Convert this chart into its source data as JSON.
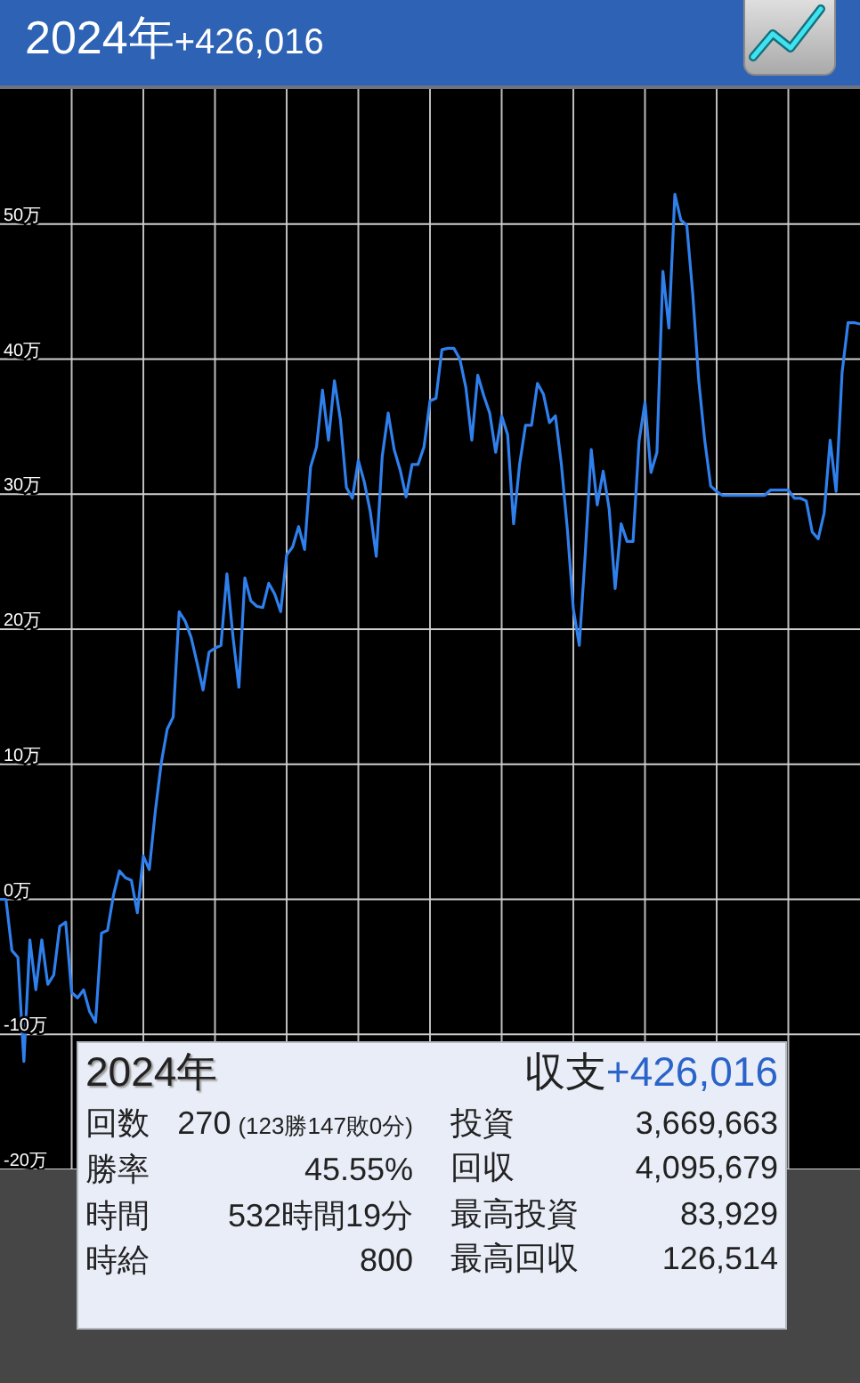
{
  "chart_data": {
    "type": "line",
    "title": "2024年",
    "subtitle": "+426,016",
    "color": "#2f80ed",
    "categories": [
      null,
      null,
      null,
      null,
      null,
      null,
      null,
      null,
      null,
      null,
      null,
      null,
      null,
      null,
      null,
      null,
      null,
      null,
      null,
      null,
      null,
      null,
      null,
      null,
      null,
      null,
      null,
      null,
      null,
      null,
      null,
      null,
      null,
      null,
      null,
      null,
      null,
      null,
      null,
      null,
      null,
      null,
      null,
      null,
      null,
      null,
      null,
      null,
      null,
      null,
      null,
      null,
      null,
      null,
      null,
      null,
      null,
      null,
      null,
      null,
      null,
      null,
      null,
      null,
      null,
      null,
      null,
      null,
      null,
      null,
      null,
      null,
      null,
      null,
      null,
      null,
      null,
      null,
      null,
      null,
      null,
      null,
      null,
      null,
      null,
      null,
      null,
      null,
      null,
      null,
      null,
      null,
      null,
      null,
      null,
      null,
      null,
      null,
      null,
      null,
      null,
      null,
      null,
      null,
      null,
      null,
      null,
      null,
      null,
      null,
      null,
      null,
      null,
      null,
      null,
      null,
      null,
      null,
      null,
      null,
      null,
      null,
      null,
      null,
      null,
      null,
      null,
      null,
      null,
      null,
      null,
      null,
      null,
      null,
      null,
      null,
      null,
      null,
      null,
      null,
      null,
      null,
      null,
      null,
      null
    ],
    "values": [
      0,
      0,
      -3.8,
      -4.3,
      -12.0,
      -3.0,
      -6.7,
      -3.0,
      -6.3,
      -5.6,
      -2.0,
      -1.7,
      -6.9,
      -7.3,
      -6.7,
      -8.3,
      -9.1,
      -2.5,
      -2.3,
      0.3,
      2.1,
      1.6,
      1.4,
      -1.0,
      3.2,
      2.2,
      6.5,
      10.1,
      12.6,
      13.5,
      21.3,
      20.6,
      19.4,
      17.5,
      15.5,
      18.3,
      18.6,
      18.8,
      24.1,
      19.5,
      15.7,
      23.8,
      22.1,
      21.7,
      21.6,
      23.4,
      22.6,
      21.3,
      25.5,
      26.1,
      27.6,
      25.9,
      32.0,
      33.5,
      37.7,
      34.0,
      38.4,
      35.5,
      30.5,
      29.7,
      32.5,
      30.9,
      28.7,
      25.4,
      32.8,
      36.0,
      33.3,
      31.8,
      29.8,
      32.2,
      32.2,
      33.5,
      36.9,
      37.1,
      40.7,
      40.8,
      40.8,
      40.0,
      37.9,
      34.0,
      38.8,
      37.3,
      36.0,
      33.1,
      35.8,
      34.4,
      27.8,
      32.2,
      35.1,
      35.1,
      38.2,
      37.4,
      35.3,
      35.8,
      32.2,
      27.4,
      21.5,
      18.8,
      25.6,
      33.3,
      29.2,
      31.7,
      28.9,
      23.0,
      27.8,
      26.5,
      26.5,
      33.9,
      36.8,
      31.6,
      33.1,
      46.5,
      42.3,
      52.2,
      50.3,
      49.9,
      44.8,
      38.4,
      34.0,
      30.6,
      30.2,
      29.9,
      29.9,
      29.9,
      29.9,
      29.9,
      29.9,
      29.9,
      29.9,
      30.3,
      30.3,
      30.3,
      30.3,
      29.7,
      29.7,
      29.5,
      27.2,
      26.7,
      28.6,
      34.0,
      30.2,
      39.0,
      42.7,
      42.7,
      42.6
    ],
    "ylim": [
      -20,
      60
    ],
    "yticks": [
      {
        "value": -20,
        "label": "-20万"
      },
      {
        "value": -10,
        "label": "-10万"
      },
      {
        "value": 0,
        "label": "0万"
      },
      {
        "value": 10,
        "label": "10万"
      },
      {
        "value": 20,
        "label": "20万"
      },
      {
        "value": 30,
        "label": "30万"
      },
      {
        "value": 40,
        "label": "40万"
      },
      {
        "value": 50,
        "label": "50万"
      }
    ],
    "grid": true,
    "annotations": [
      "2024年",
      "収支",
      "+426,016",
      "回数",
      "270",
      "(123勝147敗0分)",
      "勝率",
      "45.55%",
      "時間",
      "532時間19分",
      "時給",
      "800",
      "投資",
      "3,669,663",
      "回収",
      "4,095,679",
      "最高投資",
      "83,929",
      "最高回収",
      "126,514"
    ]
  }
}
